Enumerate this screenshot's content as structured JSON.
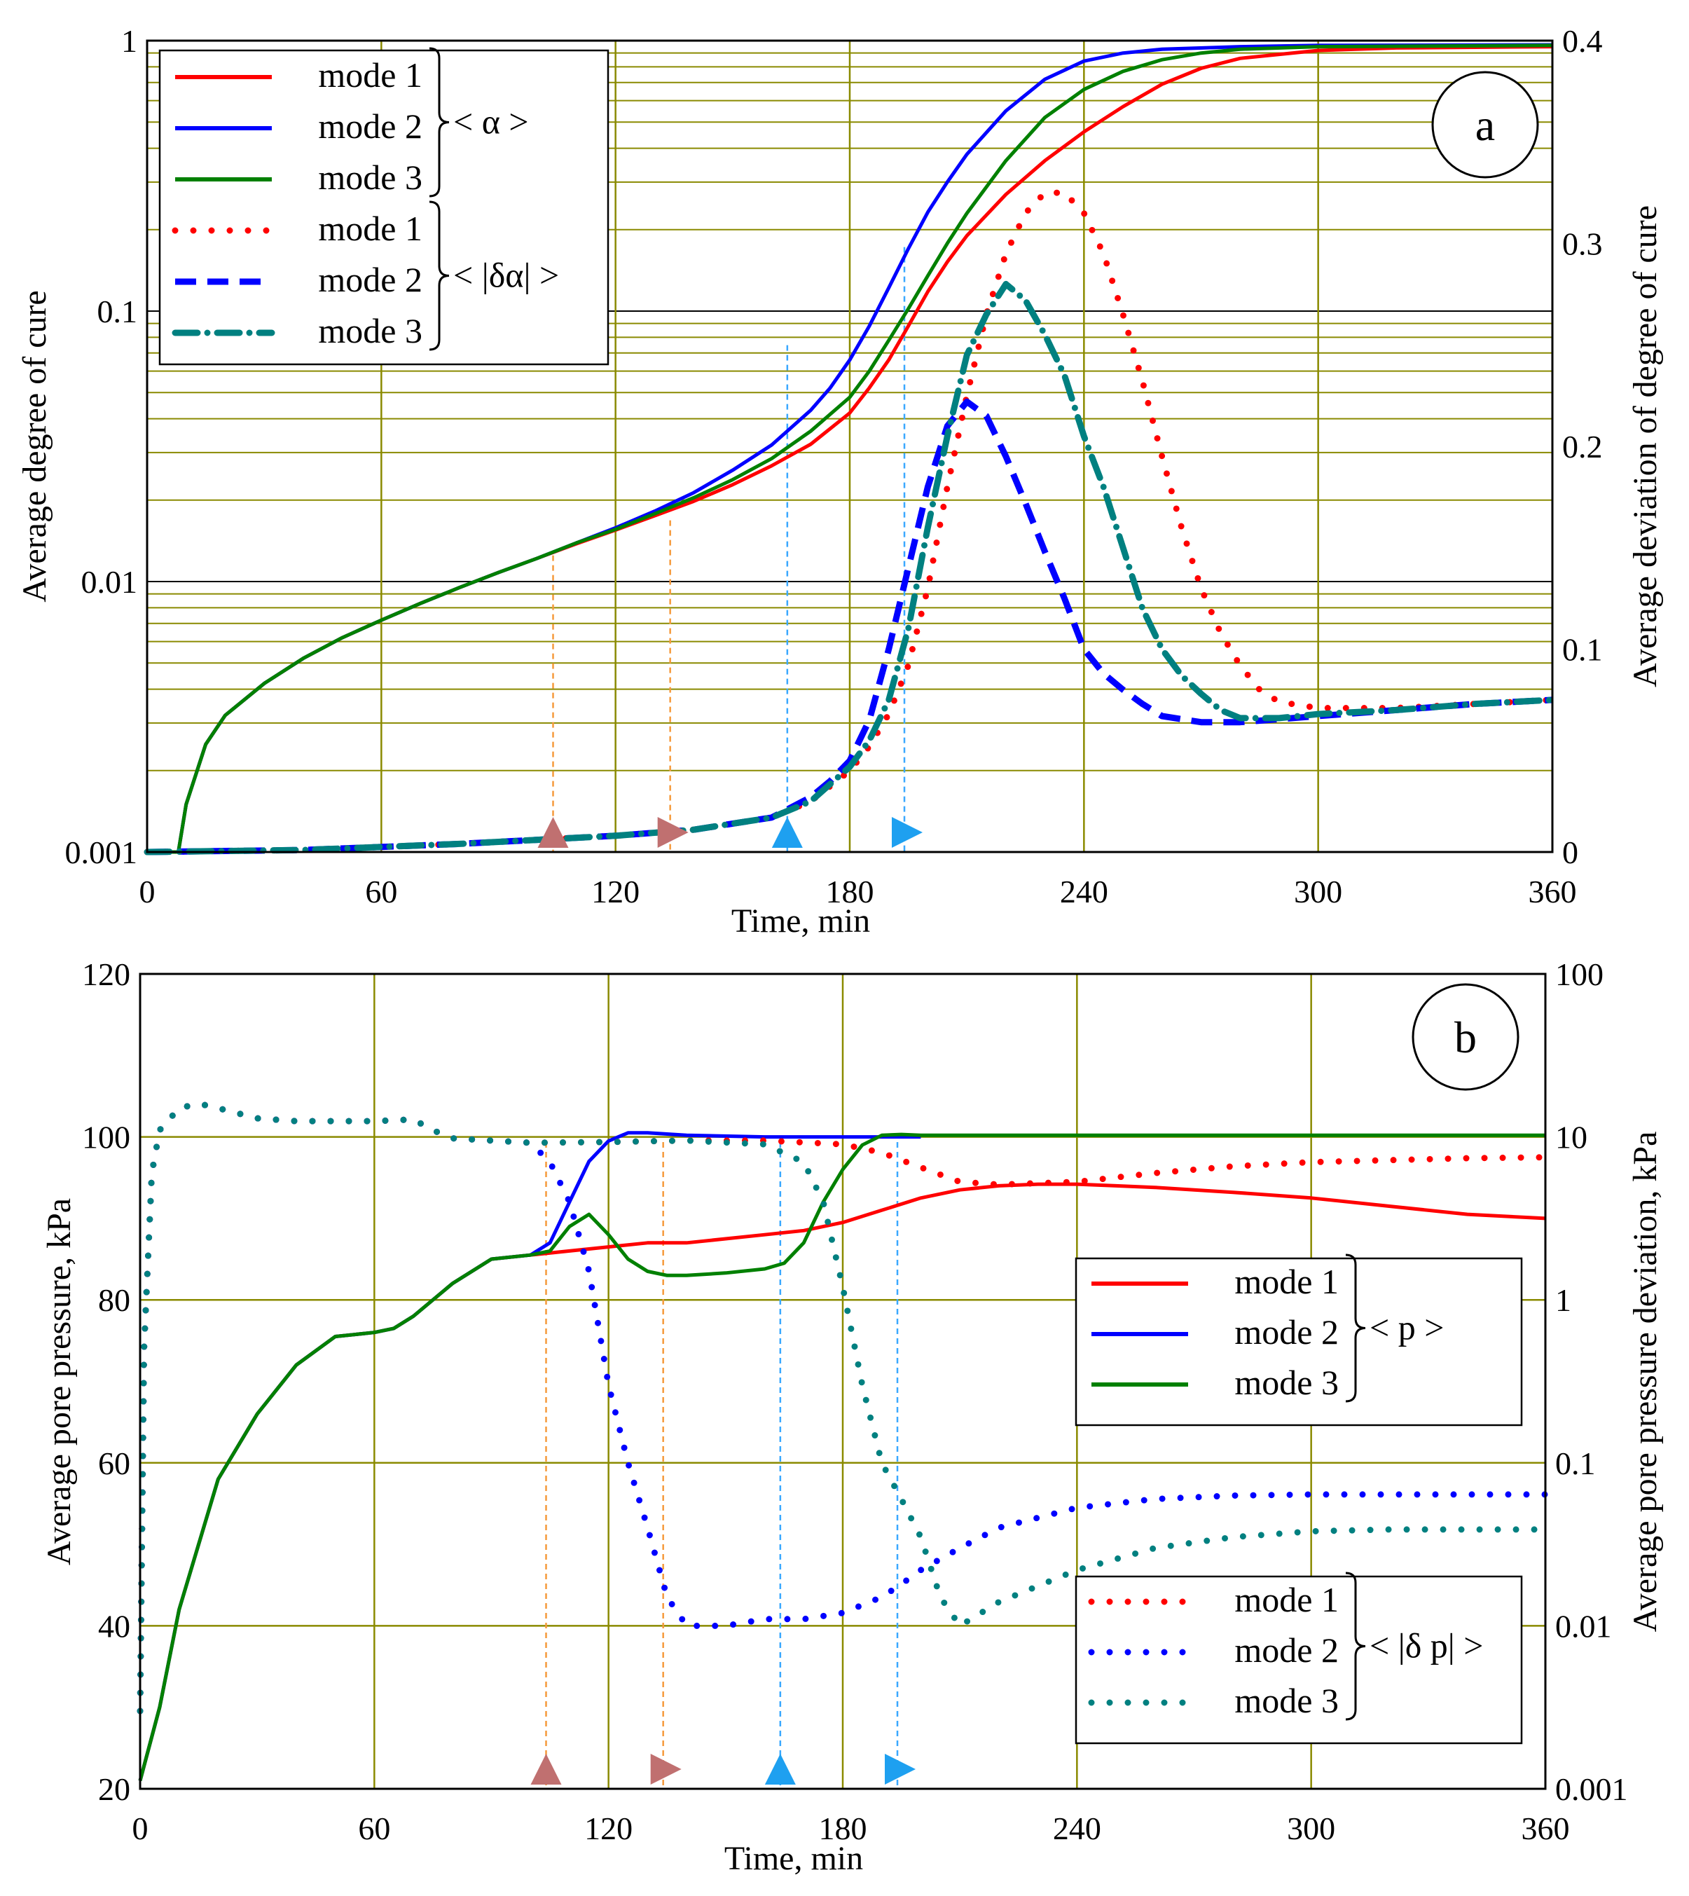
{
  "chart_data": [
    {
      "panel": "a",
      "type": "line",
      "xlabel": "Time, min",
      "ylabel": "Average  degree of cure",
      "y2label": "Average deviation of degree of cure",
      "xlim": [
        0,
        360
      ],
      "ylim": [
        0.001,
        1
      ],
      "yscale": "log",
      "y2lim": [
        0,
        0.4
      ],
      "x_ticks": [
        "0",
        "60",
        "120",
        "180",
        "240",
        "300",
        "360"
      ],
      "y_ticks": [
        "1",
        "0.1",
        "0.01",
        "0.001"
      ],
      "y2_ticks": [
        "0.4",
        "0.3",
        "0.2",
        "0.1",
        "0"
      ],
      "grid": true,
      "legend_position": "top-left",
      "legend_groups": [
        {
          "label": "< α >",
          "entries": [
            "mode 1",
            "mode 2",
            "mode 3"
          ]
        },
        {
          "label": "< |δα| >",
          "entries": [
            "mode 1",
            "mode 2",
            "mode 3"
          ]
        }
      ],
      "markers": [
        {
          "shape": "up",
          "color": "#c07070",
          "x": 104
        },
        {
          "shape": "right",
          "color": "#c07070",
          "x": 134
        },
        {
          "shape": "up",
          "color": "#1ea0f0",
          "x": 164
        },
        {
          "shape": "right",
          "color": "#1ea0f0",
          "x": 194
        }
      ],
      "series": [
        {
          "name": "mode 1",
          "group": "< α >",
          "axis": "left",
          "style": "solid",
          "color": "#ff0000",
          "x": [
            0,
            8,
            10,
            15,
            20,
            30,
            40,
            50,
            60,
            70,
            80,
            90,
            100,
            110,
            120,
            130,
            140,
            150,
            160,
            170,
            180,
            185,
            190,
            195,
            200,
            205,
            210,
            220,
            230,
            240,
            250,
            260,
            270,
            280,
            300,
            320,
            340,
            360
          ],
          "y": [
            0.001,
            0.001,
            0.0015,
            0.0025,
            0.0032,
            0.0042,
            0.0052,
            0.0062,
            0.0072,
            0.0083,
            0.0095,
            0.0108,
            0.0122,
            0.0138,
            0.0155,
            0.0175,
            0.0198,
            0.0228,
            0.0268,
            0.0322,
            0.042,
            0.052,
            0.066,
            0.088,
            0.118,
            0.152,
            0.19,
            0.27,
            0.36,
            0.46,
            0.57,
            0.69,
            0.79,
            0.86,
            0.92,
            0.94,
            0.945,
            0.95
          ]
        },
        {
          "name": "mode 2",
          "group": "< α >",
          "axis": "left",
          "style": "solid",
          "color": "#0000ff",
          "x": [
            0,
            8,
            10,
            15,
            20,
            30,
            40,
            50,
            60,
            70,
            80,
            90,
            100,
            110,
            120,
            130,
            140,
            150,
            160,
            170,
            175,
            180,
            185,
            190,
            195,
            200,
            205,
            210,
            220,
            230,
            240,
            250,
            260,
            280,
            300,
            360
          ],
          "y": [
            0.001,
            0.001,
            0.0015,
            0.0025,
            0.0032,
            0.0042,
            0.0052,
            0.0062,
            0.0072,
            0.0083,
            0.0095,
            0.0108,
            0.0122,
            0.0139,
            0.0158,
            0.0182,
            0.0213,
            0.0258,
            0.032,
            0.043,
            0.052,
            0.066,
            0.088,
            0.122,
            0.17,
            0.232,
            0.3,
            0.38,
            0.55,
            0.72,
            0.84,
            0.9,
            0.93,
            0.95,
            0.96,
            0.965
          ]
        },
        {
          "name": "mode 3",
          "group": "< α >",
          "axis": "left",
          "style": "solid",
          "color": "#008000",
          "x": [
            0,
            8,
            10,
            15,
            20,
            30,
            40,
            50,
            60,
            70,
            80,
            90,
            100,
            110,
            120,
            130,
            140,
            150,
            160,
            170,
            180,
            185,
            190,
            195,
            200,
            205,
            210,
            220,
            230,
            240,
            250,
            260,
            270,
            280,
            300,
            360
          ],
          "y": [
            0.001,
            0.001,
            0.0015,
            0.0025,
            0.0032,
            0.0042,
            0.0052,
            0.0062,
            0.0072,
            0.0083,
            0.0095,
            0.0108,
            0.0122,
            0.0139,
            0.0156,
            0.0178,
            0.0204,
            0.0238,
            0.0285,
            0.036,
            0.048,
            0.06,
            0.078,
            0.102,
            0.135,
            0.178,
            0.23,
            0.36,
            0.52,
            0.66,
            0.77,
            0.85,
            0.9,
            0.93,
            0.95,
            0.96
          ]
        },
        {
          "name": "mode 1",
          "group": "< |δα| >",
          "axis": "right",
          "style": "dotted",
          "color": "#ff0000",
          "x": [
            0,
            40,
            80,
            100,
            120,
            140,
            160,
            170,
            180,
            185,
            190,
            195,
            200,
            205,
            210,
            215,
            220,
            225,
            230,
            235,
            240,
            245,
            250,
            255,
            260,
            265,
            270,
            275,
            280,
            285,
            290,
            300,
            320,
            340,
            360
          ],
          "y": [
            0,
            0.001,
            0.004,
            0.006,
            0.008,
            0.011,
            0.017,
            0.025,
            0.04,
            0.052,
            0.068,
            0.092,
            0.13,
            0.18,
            0.225,
            0.265,
            0.295,
            0.315,
            0.325,
            0.325,
            0.315,
            0.295,
            0.265,
            0.232,
            0.195,
            0.16,
            0.13,
            0.108,
            0.092,
            0.08,
            0.074,
            0.071,
            0.071,
            0.073,
            0.075
          ]
        },
        {
          "name": "mode 2",
          "group": "< |δα| >",
          "axis": "right",
          "style": "dashed",
          "color": "#0000ff",
          "x": [
            0,
            40,
            80,
            100,
            120,
            140,
            160,
            170,
            175,
            180,
            185,
            190,
            195,
            200,
            205,
            210,
            215,
            220,
            225,
            230,
            235,
            240,
            245,
            250,
            255,
            260,
            270,
            280,
            300,
            320,
            340,
            360
          ],
          "y": [
            0,
            0.001,
            0.004,
            0.006,
            0.008,
            0.011,
            0.017,
            0.027,
            0.035,
            0.045,
            0.065,
            0.1,
            0.14,
            0.18,
            0.21,
            0.222,
            0.215,
            0.195,
            0.172,
            0.148,
            0.125,
            0.1,
            0.088,
            0.08,
            0.073,
            0.067,
            0.064,
            0.064,
            0.067,
            0.07,
            0.073,
            0.075
          ]
        },
        {
          "name": "mode 3",
          "group": "< |δα| >",
          "axis": "right",
          "style": "dashdot",
          "color": "#008080",
          "x": [
            0,
            40,
            80,
            100,
            120,
            140,
            160,
            170,
            180,
            185,
            190,
            195,
            200,
            205,
            210,
            215,
            220,
            225,
            230,
            235,
            240,
            245,
            250,
            255,
            260,
            265,
            270,
            275,
            280,
            290,
            300,
            320,
            340,
            360
          ],
          "y": [
            0,
            0.001,
            0.004,
            0.006,
            0.008,
            0.011,
            0.017,
            0.025,
            0.042,
            0.055,
            0.075,
            0.11,
            0.16,
            0.205,
            0.245,
            0.265,
            0.28,
            0.272,
            0.255,
            0.235,
            0.205,
            0.18,
            0.15,
            0.12,
            0.1,
            0.087,
            0.078,
            0.07,
            0.066,
            0.066,
            0.068,
            0.07,
            0.073,
            0.075
          ]
        }
      ]
    },
    {
      "panel": "b",
      "type": "line",
      "xlabel": "Time, min",
      "ylabel": "Average pore pressure, kPa",
      "y2label": "Average pore pressure deviation, kPa",
      "xlim": [
        0,
        360
      ],
      "ylim": [
        20,
        120
      ],
      "y2lim": [
        0.001,
        100
      ],
      "y2scale": "log",
      "x_ticks": [
        "0",
        "60",
        "120",
        "180",
        "240",
        "300",
        "360"
      ],
      "y_ticks": [
        "120",
        "100",
        "80",
        "60",
        "40",
        "20"
      ],
      "y2_ticks": [
        "100",
        "10",
        "1",
        "0.1",
        "0.01",
        "0.001"
      ],
      "grid": true,
      "legend_position": "right",
      "legend_groups": [
        {
          "label": "< p >",
          "entries": [
            "mode 1",
            "mode 2",
            "mode 3"
          ]
        },
        {
          "label": "< |δ p| >",
          "entries": [
            "mode 1",
            "mode 2",
            "mode 3"
          ]
        }
      ],
      "markers": [
        {
          "shape": "up",
          "color": "#c07070",
          "x": 104
        },
        {
          "shape": "right",
          "color": "#c07070",
          "x": 134
        },
        {
          "shape": "up",
          "color": "#1ea0f0",
          "x": 164
        },
        {
          "shape": "right",
          "color": "#1ea0f0",
          "x": 194
        }
      ],
      "series": [
        {
          "name": "mode 1",
          "group": "< p >",
          "axis": "left",
          "style": "solid",
          "color": "#ff0000",
          "x": [
            0,
            5,
            10,
            20,
            30,
            40,
            50,
            60,
            65,
            70,
            80,
            90,
            100,
            110,
            120,
            130,
            140,
            150,
            160,
            170,
            180,
            190,
            200,
            210,
            220,
            230,
            240,
            250,
            260,
            280,
            300,
            320,
            340,
            360
          ],
          "y": [
            21,
            30,
            42,
            58,
            66,
            72,
            75.5,
            76,
            76.5,
            78,
            82,
            85,
            85.5,
            86,
            86.5,
            87,
            87,
            87.5,
            88,
            88.5,
            89.5,
            91,
            92.5,
            93.5,
            94,
            94.2,
            94.2,
            94,
            93.8,
            93.2,
            92.5,
            91.5,
            90.5,
            90
          ]
        },
        {
          "name": "mode 2",
          "group": "< p >",
          "axis": "left",
          "style": "solid",
          "color": "#0000ff",
          "x": [
            0,
            5,
            10,
            20,
            30,
            40,
            50,
            60,
            65,
            70,
            80,
            90,
            100,
            105,
            110,
            115,
            120,
            125,
            130,
            140,
            160,
            180,
            200
          ],
          "y": [
            21,
            30,
            42,
            58,
            66,
            72,
            75.5,
            76,
            76.5,
            78,
            82,
            85,
            85.5,
            87,
            92,
            97,
            99.5,
            100.5,
            100.5,
            100.2,
            100,
            100,
            100
          ]
        },
        {
          "name": "mode 3",
          "group": "< p >",
          "axis": "left",
          "style": "solid",
          "color": "#008000",
          "x": [
            0,
            5,
            10,
            20,
            30,
            40,
            50,
            60,
            65,
            70,
            80,
            90,
            100,
            105,
            110,
            115,
            120,
            125,
            130,
            135,
            140,
            150,
            160,
            165,
            170,
            175,
            180,
            185,
            190,
            195,
            200,
            240,
            300,
            360
          ],
          "y": [
            21,
            30,
            42,
            58,
            66,
            72,
            75.5,
            76,
            76.5,
            78,
            82,
            85,
            85.5,
            86,
            89,
            90.5,
            88,
            85,
            83.5,
            83,
            83,
            83.3,
            83.8,
            84.5,
            87,
            92,
            96,
            99,
            100.2,
            100.3,
            100.2,
            100.2,
            100.2,
            100.2
          ]
        },
        {
          "name": "mode 1",
          "group": "< |δ p| >",
          "axis": "right",
          "style": "dotted",
          "color": "#ff0000",
          "x": [
            0,
            1,
            3,
            5,
            10,
            15,
            20,
            30,
            40,
            60,
            70,
            75,
            80,
            100,
            120,
            140,
            160,
            180,
            190,
            200,
            210,
            220,
            240,
            260,
            280,
            300,
            320,
            340,
            360
          ],
          "y": [
            0.003,
            0.5,
            6,
            11,
            15,
            16,
            15,
            13,
            12.5,
            12.5,
            12.8,
            11,
            9.8,
            9.2,
            9.3,
            9.5,
            9.5,
            9,
            8,
            6.5,
            5.3,
            5.1,
            5.3,
            6.0,
            6.6,
            7.0,
            7.2,
            7.4,
            7.5
          ]
        },
        {
          "name": "mode 2",
          "group": "< |δ p| >",
          "axis": "right",
          "style": "dotted",
          "color": "#0000ff",
          "x": [
            0,
            1,
            3,
            5,
            10,
            15,
            20,
            30,
            40,
            60,
            70,
            75,
            80,
            100,
            105,
            110,
            115,
            120,
            125,
            130,
            135,
            140,
            150,
            160,
            170,
            180,
            190,
            195,
            200,
            210,
            220,
            240,
            260,
            280,
            300,
            320,
            340,
            360
          ],
          "y": [
            0.003,
            0.5,
            6,
            11,
            15,
            16,
            15,
            13,
            12.5,
            12.5,
            12.8,
            11,
            9.8,
            9.2,
            7,
            4,
            1.5,
            0.3,
            0.1,
            0.04,
            0.015,
            0.01,
            0.01,
            0.011,
            0.011,
            0.012,
            0.015,
            0.018,
            0.022,
            0.03,
            0.04,
            0.053,
            0.06,
            0.063,
            0.064,
            0.064,
            0.064,
            0.064
          ]
        },
        {
          "name": "mode 3",
          "group": "< |δ p| >",
          "axis": "right",
          "style": "dotted",
          "color": "#008080",
          "x": [
            0,
            1,
            3,
            5,
            10,
            15,
            20,
            30,
            40,
            60,
            70,
            75,
            80,
            100,
            120,
            140,
            160,
            170,
            175,
            180,
            185,
            190,
            195,
            200,
            205,
            210,
            220,
            240,
            260,
            280,
            300,
            320,
            340,
            360
          ],
          "y": [
            0.003,
            0.5,
            6,
            11,
            15,
            16,
            15,
            13,
            12.5,
            12.5,
            12.8,
            11,
            9.8,
            9.2,
            9.3,
            9.5,
            9.0,
            7,
            4,
            1.2,
            0.3,
            0.1,
            0.06,
            0.035,
            0.015,
            0.01,
            0.014,
            0.022,
            0.03,
            0.035,
            0.038,
            0.039,
            0.039,
            0.039
          ]
        }
      ]
    }
  ]
}
